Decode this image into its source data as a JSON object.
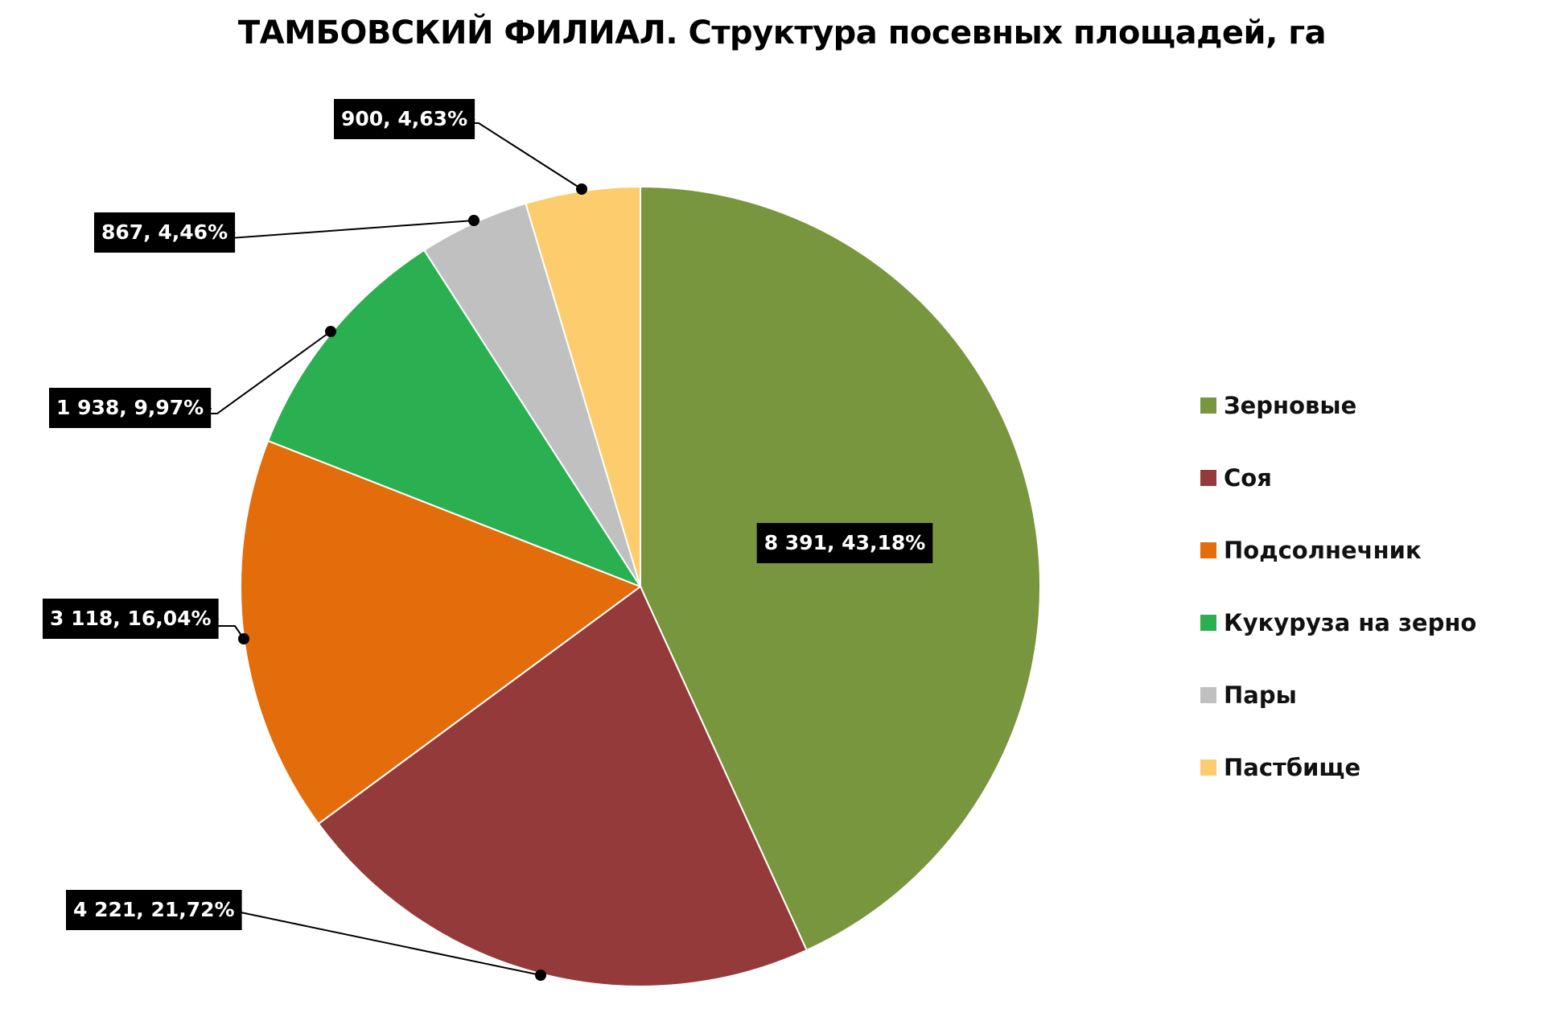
{
  "chart_data": {
    "type": "pie",
    "title": "ТАМБОВСКИЙ ФИЛИАЛ. Структура посевных площадей, га",
    "legend_position": "right",
    "slices": [
      {
        "name": "Зерновые",
        "value": 8391,
        "value_label": "8 391",
        "percent_label": "43,18%",
        "color": "#78963e"
      },
      {
        "name": "Соя",
        "value": 4221,
        "value_label": "4 221",
        "percent_label": "21,72%",
        "color": "#953a3a"
      },
      {
        "name": "Подсолнечник",
        "value": 3118,
        "value_label": "3 118",
        "percent_label": "16,04%",
        "color": "#e36c0b"
      },
      {
        "name": "Кукуруза на зерно",
        "value": 1938,
        "value_label": "1 938",
        "percent_label": "9,97%",
        "color": "#2ab050"
      },
      {
        "name": "Пары",
        "value": 867,
        "value_label": "867",
        "percent_label": "4,46%",
        "color": "#c0c0c0"
      },
      {
        "name": "Пастбище",
        "value": 900,
        "value_label": "900",
        "percent_label": "4,63%",
        "color": "#fccc6d"
      }
    ]
  }
}
